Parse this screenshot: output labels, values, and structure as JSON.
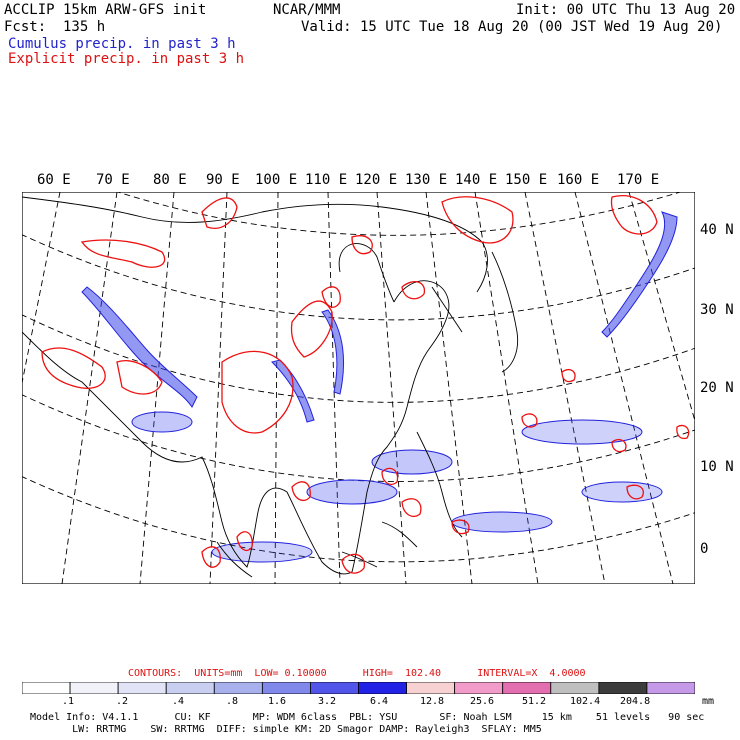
{
  "header": {
    "title": "ACCLIP 15km ARW-GFS init",
    "forecast": "Fcst:  135 h",
    "cumulus_label": "Cumulus precip. in past 3 h",
    "explicit_label": "Explicit precip. in past 3 h",
    "org": "NCAR/MMM",
    "init": "Init: 00 UTC Thu 13 Aug 20",
    "valid": "Valid: 15 UTC Tue 18 Aug 20 (00 JST Wed 19 Aug 20)"
  },
  "map": {
    "lon_labels": [
      "60 E",
      "70 E",
      "80 E",
      "90 E",
      "100 E",
      "110 E",
      "120 E",
      "130 E",
      "140 E",
      "150 E",
      "160 E",
      "170 E"
    ],
    "lat_labels": [
      "40 N",
      "30 N",
      "20 N",
      "10 N",
      "0"
    ],
    "colors": {
      "cumulus": "#2233ee",
      "explicit": "#ee1111",
      "coast": "#000000",
      "grid": "#000000"
    }
  },
  "contours": {
    "units_label": "CONTOURS:  UNITS=mm  LOW= 0.10000      HIGH=  102.40      INTERVAL=X  4.0000"
  },
  "colorbar": {
    "unit": "mm",
    "ticks": [
      ".1",
      ".2",
      ".4",
      ".8",
      "1.6",
      "3.2",
      "6.4",
      "12.8",
      "25.6",
      "51.2",
      "102.4",
      "204.8"
    ],
    "colors": [
      "#ffffff",
      "#f2f2fb",
      "#e1e4f6",
      "#c9cff1",
      "#a9b1ec",
      "#8088ea",
      "#5255ea",
      "#2222e6",
      "#f8d2d2",
      "#f19cc9",
      "#e36fb1",
      "#bfbfbf",
      "#3c3c3c",
      "#c59be9"
    ]
  },
  "footer": {
    "line1": "Model Info: V4.1.1      CU: KF       MP: WDM 6class  PBL: YSU       SF: Noah LSM     15 km    51 levels   90 sec",
    "line2": "       LW: RRTMG    SW: RRTMG  DIFF: simple KM: 2D Smagor DAMP: Rayleigh3  SFLAY: MM5"
  }
}
